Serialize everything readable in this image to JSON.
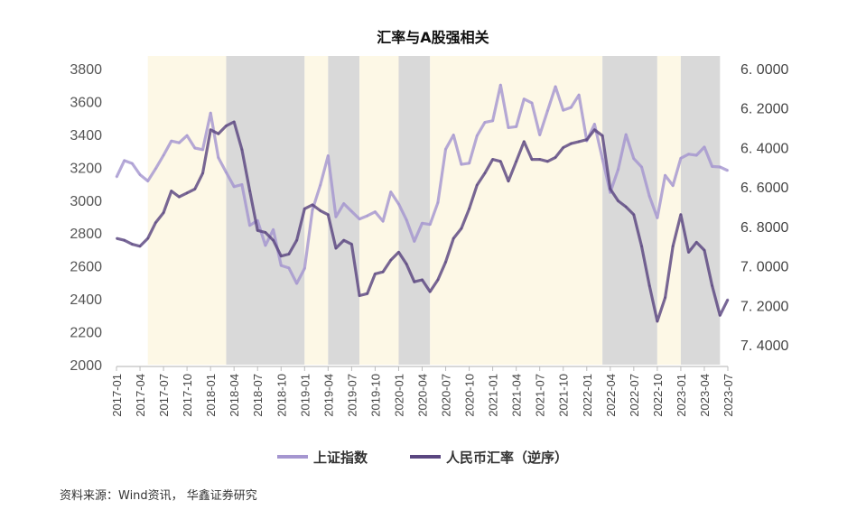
{
  "chart_data": {
    "type": "line",
    "title": "汇率与A股强相关",
    "source": "资料来源：Wind资讯， 华鑫证券研究",
    "x_start": "2017-01",
    "x_ticks": [
      "2017-01",
      "2017-04",
      "2017-07",
      "2017-10",
      "2018-01",
      "2018-04",
      "2018-07",
      "2018-10",
      "2019-01",
      "2019-04",
      "2019-07",
      "2019-10",
      "2020-01",
      "2020-04",
      "2020-07",
      "2020-10",
      "2021-01",
      "2021-04",
      "2021-07",
      "2021-10",
      "2022-01",
      "2022-04",
      "2022-07",
      "2022-10",
      "2023-01",
      "2023-04",
      "2023-07"
    ],
    "y_left": {
      "range": [
        2000,
        3800
      ],
      "ticks": [
        "2000",
        "2200",
        "2400",
        "2600",
        "2800",
        "3000",
        "3200",
        "3400",
        "3600",
        "3800"
      ]
    },
    "y_right": {
      "range": [
        6.0,
        7.5
      ],
      "reversed": true,
      "ticks": [
        "6.0000",
        "6.2000",
        "6.4000",
        "6.6000",
        "6.8000",
        "7.0000",
        "7.2000",
        "7.4000"
      ],
      "tick_values": [
        6.0,
        6.2,
        6.4,
        6.6,
        6.8,
        7.0,
        7.2,
        7.4
      ]
    },
    "shading": [
      {
        "from": "2017-05",
        "to": "2018-03",
        "color": "#fdf8e6"
      },
      {
        "from": "2018-03",
        "to": "2019-01",
        "color": "#d9d9d9"
      },
      {
        "from": "2019-01",
        "to": "2019-04",
        "color": "#fdf8e6"
      },
      {
        "from": "2019-04",
        "to": "2019-08",
        "color": "#d9d9d9"
      },
      {
        "from": "2019-08",
        "to": "2020-01",
        "color": "#fdf8e6"
      },
      {
        "from": "2020-01",
        "to": "2020-05",
        "color": "#d9d9d9"
      },
      {
        "from": "2020-05",
        "to": "2022-03",
        "color": "#fdf8e6"
      },
      {
        "from": "2022-03",
        "to": "2022-10",
        "color": "#d9d9d9"
      },
      {
        "from": "2022-10",
        "to": "2023-01",
        "color": "#fdf8e6"
      },
      {
        "from": "2023-01",
        "to": "2023-06",
        "color": "#d9d9d9"
      }
    ],
    "series": [
      {
        "name": "上证指数",
        "axis": "left",
        "color": "#a596d0",
        "values": [
          3140,
          3241,
          3223,
          3155,
          3117,
          3192,
          3273,
          3360,
          3349,
          3393,
          3317,
          3307,
          3530,
          3259,
          3169,
          3082,
          3095,
          2847,
          2876,
          2725,
          2821,
          2603,
          2588,
          2494,
          2585,
          2941,
          3091,
          3270,
          2899,
          2979,
          2932,
          2886,
          2905,
          2929,
          2872,
          3050,
          2977,
          2880,
          2750,
          2860,
          2852,
          2985,
          3310,
          3396,
          3218,
          3225,
          3392,
          3473,
          3483,
          3700,
          3441,
          3447,
          3615,
          3591,
          3397,
          3544,
          3690,
          3547,
          3564,
          3640,
          3361,
          3462,
          3252,
          3047,
          3186,
          3399,
          3253,
          3202,
          3024,
          2893,
          3151,
          3089,
          3255,
          3280,
          3273,
          3323,
          3205,
          3202,
          3180
        ]
      },
      {
        "name": "人民币汇率（逆序）",
        "axis": "right",
        "color": "#5a4680",
        "values": [
          6.86,
          6.87,
          6.89,
          6.9,
          6.86,
          6.78,
          6.73,
          6.62,
          6.65,
          6.63,
          6.61,
          6.53,
          6.31,
          6.33,
          6.29,
          6.27,
          6.41,
          6.62,
          6.82,
          6.83,
          6.87,
          6.95,
          6.94,
          6.87,
          6.71,
          6.69,
          6.72,
          6.74,
          6.91,
          6.87,
          6.89,
          7.15,
          7.14,
          7.04,
          7.03,
          6.97,
          6.93,
          6.99,
          7.08,
          7.07,
          7.13,
          7.07,
          6.98,
          6.86,
          6.81,
          6.71,
          6.59,
          6.53,
          6.46,
          6.47,
          6.57,
          6.47,
          6.37,
          6.46,
          6.46,
          6.47,
          6.45,
          6.4,
          6.38,
          6.37,
          6.36,
          6.31,
          6.34,
          6.61,
          6.67,
          6.7,
          6.74,
          6.9,
          7.1,
          7.28,
          7.16,
          6.9,
          6.74,
          6.93,
          6.88,
          6.92,
          7.1,
          7.25,
          7.17
        ]
      }
    ],
    "legend": {
      "position": "bottom",
      "items": [
        "上证指数",
        "人民币汇率（逆序）"
      ]
    }
  }
}
